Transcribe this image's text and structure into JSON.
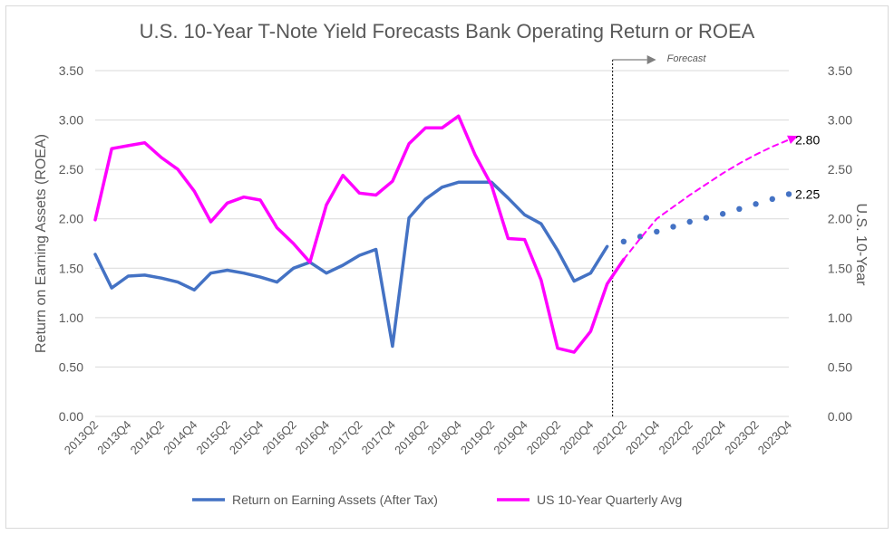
{
  "chart_data": {
    "type": "line",
    "title": "U.S. 10-Year T-Note Yield Forecasts Bank Operating Return or ROEA",
    "ylabel": "Return on Earning Assets (ROEA)",
    "y2label": "U.S. 10-Year",
    "ylim": [
      0,
      3.5
    ],
    "y2lim": [
      0,
      3.5
    ],
    "yticks": [
      "0.00",
      "0.50",
      "1.00",
      "1.50",
      "2.00",
      "2.50",
      "3.00",
      "3.50"
    ],
    "grid": true,
    "legend_position": "bottom",
    "x": [
      "2013Q2",
      "2013Q3",
      "2013Q4",
      "2014Q1",
      "2014Q2",
      "2014Q3",
      "2014Q4",
      "2015Q1",
      "2015Q2",
      "2015Q3",
      "2015Q4",
      "2016Q1",
      "2016Q2",
      "2016Q3",
      "2016Q4",
      "2017Q1",
      "2017Q2",
      "2017Q3",
      "2017Q4",
      "2018Q1",
      "2018Q2",
      "2018Q3",
      "2018Q4",
      "2019Q1",
      "2019Q2",
      "2019Q3",
      "2019Q4",
      "2020Q1",
      "2020Q2",
      "2020Q3",
      "2020Q4",
      "2021Q1",
      "2021Q2",
      "2021Q3",
      "2021Q4",
      "2022Q1",
      "2022Q2",
      "2022Q3",
      "2022Q4",
      "2023Q1",
      "2023Q2",
      "2023Q3",
      "2023Q4"
    ],
    "xtick_labels": [
      "2013Q2",
      "2013Q4",
      "2014Q2",
      "2014Q4",
      "2015Q2",
      "2015Q4",
      "2016Q2",
      "2016Q4",
      "2017Q2",
      "2017Q4",
      "2018Q2",
      "2018Q4",
      "2019Q2",
      "2019Q4",
      "2020Q2",
      "2020Q4",
      "2021Q2",
      "2021Q4",
      "2022Q2",
      "2022Q4",
      "2023Q2",
      "2023Q4"
    ],
    "series": [
      {
        "name": "Return on Earning Assets (After Tax)",
        "color": "#4472c4",
        "style": "solid",
        "values": [
          1.64,
          1.3,
          1.42,
          1.43,
          1.4,
          1.36,
          1.28,
          1.45,
          1.48,
          1.45,
          1.41,
          1.36,
          1.5,
          1.56,
          1.45,
          1.53,
          1.63,
          1.69,
          0.71,
          2.01,
          2.2,
          2.32,
          2.37,
          2.37,
          2.37,
          2.21,
          2.04,
          1.95,
          1.68,
          1.37,
          1.45,
          1.72,
          null,
          null,
          null,
          null,
          null,
          null,
          null,
          null,
          null,
          null,
          null
        ]
      },
      {
        "name": "ROEA Forecast",
        "color": "#4472c4",
        "style": "dotted",
        "values": [
          null,
          null,
          null,
          null,
          null,
          null,
          null,
          null,
          null,
          null,
          null,
          null,
          null,
          null,
          null,
          null,
          null,
          null,
          null,
          null,
          null,
          null,
          null,
          null,
          null,
          null,
          null,
          null,
          null,
          null,
          null,
          null,
          1.77,
          1.82,
          1.87,
          1.92,
          1.97,
          2.01,
          2.05,
          2.1,
          2.15,
          2.2,
          2.25
        ]
      },
      {
        "name": "US 10-Year Quarterly Avg",
        "color": "#ff00ff",
        "style": "solid",
        "values": [
          1.99,
          2.71,
          2.74,
          2.77,
          2.62,
          2.5,
          2.28,
          1.97,
          2.16,
          2.22,
          2.19,
          1.91,
          1.75,
          1.56,
          2.14,
          2.44,
          2.26,
          2.24,
          2.38,
          2.76,
          2.92,
          2.92,
          3.04,
          2.65,
          2.34,
          1.8,
          1.79,
          1.38,
          0.69,
          0.65,
          0.86,
          1.34,
          1.59,
          null,
          null,
          null,
          null,
          null,
          null,
          null,
          null,
          null,
          null
        ]
      },
      {
        "name": "US 10-Year Forecast",
        "color": "#ff00ff",
        "style": "dashed",
        "values": [
          null,
          null,
          null,
          null,
          null,
          null,
          null,
          null,
          null,
          null,
          null,
          null,
          null,
          null,
          null,
          null,
          null,
          null,
          null,
          null,
          null,
          null,
          null,
          null,
          null,
          null,
          null,
          null,
          null,
          null,
          null,
          null,
          1.59,
          1.8,
          2.0,
          2.12,
          2.24,
          2.35,
          2.46,
          2.56,
          2.65,
          2.73,
          2.8
        ]
      }
    ],
    "annotations": [
      "2.80",
      "2.25",
      "Forecast"
    ],
    "legend": [
      "Return on Earning Assets (After Tax)",
      "US 10-Year Quarterly Avg"
    ]
  }
}
